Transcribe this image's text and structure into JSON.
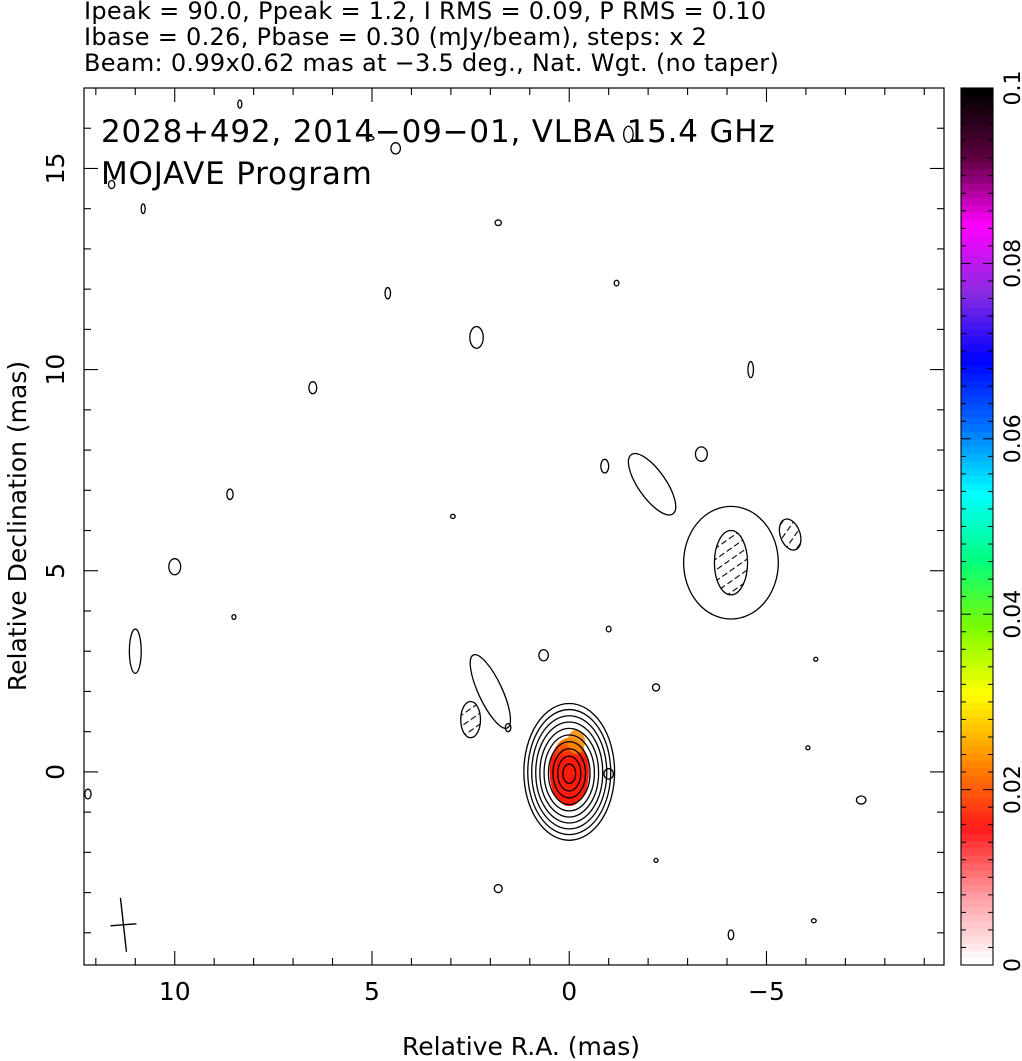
{
  "header": {
    "line1": "Ipeak = 90.0, Ppeak = 1.2, I RMS = 0.09, P RMS = 0.10",
    "line2": "Ibase = 0.26, Pbase = 0.30 (mJy/beam), steps: x 2",
    "line3": "Beam: 0.99x0.62 mas at −3.5 deg., Nat. Wgt. (no taper)"
  },
  "annotations": {
    "source_line": "2028+492, 2014−09−01, VLBA 15.4 GHz",
    "program_line": "MOJAVE Program"
  },
  "axes": {
    "xlabel": "Relative R.A. (mas)",
    "ylabel": "Relative Declination (mas)"
  },
  "colors": {
    "colorbar_stops": [
      "#ffffff",
      "#ff9aa0",
      "#ff1a1a",
      "#ff8c00",
      "#ffff00",
      "#7cfc00",
      "#00ff7f",
      "#00ffff",
      "#0070ff",
      "#0000ff",
      "#8a2be2",
      "#ff00ff",
      "#600040",
      "#000000"
    ],
    "polarization_core": "#ff1a0a",
    "polarization_edge": "#ff8a00"
  },
  "chart_data": {
    "type": "contour",
    "title": "2028+492, 2014−09−01, VLBA 15.4 GHz",
    "subtitle": "MOJAVE Program",
    "xlabel": "Relative R.A. (mas)",
    "ylabel": "Relative Declination (mas)",
    "xlim": [
      12.3,
      -9.5
    ],
    "ylim": [
      -4.8,
      17.0
    ],
    "x_ticks": [
      10,
      5,
      0,
      -5
    ],
    "x_tick_labels": [
      "10",
      "5",
      "0",
      "−5"
    ],
    "y_ticks": [
      0,
      5,
      10,
      15
    ],
    "y_tick_labels": [
      "0",
      "5",
      "10",
      "15"
    ],
    "colorbar": {
      "range": [
        0,
        0.1
      ],
      "ticks": [
        0,
        0.02,
        0.04,
        0.06,
        0.08,
        0.1
      ],
      "tick_labels": [
        "0",
        "0.02",
        "0.04",
        "0.06",
        "0.08",
        "0.1"
      ]
    },
    "stats": {
      "ipeak": 90.0,
      "ppeak": 1.2,
      "i_rms": 0.09,
      "p_rms": 0.1,
      "ibase": 0.26,
      "pbase": 0.3,
      "units": "mJy/beam",
      "contour_step": 2
    },
    "beam": {
      "major_mas": 0.99,
      "minor_mas": 0.62,
      "pa_deg": -3.5,
      "weighting": "Nat. Wgt. (no taper)"
    },
    "core": {
      "x": 0.0,
      "y": 0.0,
      "n_contours": 10,
      "outer_semi_x": 1.15,
      "outer_semi_y": 1.7
    },
    "features": [
      {
        "x": -4.1,
        "y": 5.2,
        "semi_x": 1.2,
        "semi_y": 1.4,
        "hatched": false
      },
      {
        "x": -4.1,
        "y": 5.2,
        "semi_x": 0.42,
        "semi_y": 0.8,
        "hatched": true
      },
      {
        "x": -5.6,
        "y": 5.9,
        "semi_x": 0.25,
        "semi_y": 0.4,
        "hatched": true,
        "angle": -20
      },
      {
        "x": -2.1,
        "y": 7.15,
        "semi_x": 0.35,
        "semi_y": 0.9,
        "angle": -35,
        "hatched": false
      },
      {
        "x": -3.35,
        "y": 7.9,
        "semi_x": 0.15,
        "semi_y": 0.18,
        "hatched": false
      },
      {
        "x": -0.9,
        "y": 7.6,
        "semi_x": 0.1,
        "semi_y": 0.17,
        "hatched": false
      },
      {
        "x": 2.0,
        "y": 2.0,
        "semi_x": 0.3,
        "semi_y": 1.0,
        "angle": -25,
        "hatched": false
      },
      {
        "x": 2.5,
        "y": 1.3,
        "semi_x": 0.25,
        "semi_y": 0.45,
        "hatched": true
      },
      {
        "x": 2.35,
        "y": 10.8,
        "semi_x": 0.17,
        "semi_y": 0.27,
        "hatched": false
      },
      {
        "x": 4.6,
        "y": 11.9,
        "semi_x": 0.07,
        "semi_y": 0.14,
        "hatched": false
      },
      {
        "x": 6.5,
        "y": 9.55,
        "semi_x": 0.1,
        "semi_y": 0.15,
        "hatched": false
      },
      {
        "x": 8.6,
        "y": 6.9,
        "semi_x": 0.08,
        "semi_y": 0.13,
        "hatched": false
      },
      {
        "x": 10.0,
        "y": 5.1,
        "semi_x": 0.15,
        "semi_y": 0.2,
        "hatched": false
      },
      {
        "x": 11.0,
        "y": 3.0,
        "semi_x": 0.15,
        "semi_y": 0.55,
        "hatched": false
      },
      {
        "x": 0.65,
        "y": 2.9,
        "semi_x": 0.12,
        "semi_y": 0.14,
        "hatched": false
      },
      {
        "x": 1.55,
        "y": 1.1,
        "semi_x": 0.07,
        "semi_y": 0.1,
        "hatched": false
      },
      {
        "x": -1.0,
        "y": -0.05,
        "semi_x": 0.12,
        "semi_y": 0.13,
        "hatched": false
      },
      {
        "x": -1.0,
        "y": 3.55,
        "semi_x": 0.06,
        "semi_y": 0.07,
        "hatched": false
      },
      {
        "x": -2.2,
        "y": 2.1,
        "semi_x": 0.09,
        "semi_y": 0.09,
        "hatched": false
      },
      {
        "x": -1.2,
        "y": 12.15,
        "semi_x": 0.06,
        "semi_y": 0.07,
        "hatched": false
      },
      {
        "x": 1.8,
        "y": 13.65,
        "semi_x": 0.08,
        "semi_y": 0.07,
        "hatched": false
      },
      {
        "x": 1.8,
        "y": -2.9,
        "semi_x": 0.1,
        "semi_y": 0.1,
        "hatched": false
      },
      {
        "x": -4.6,
        "y": 10.0,
        "semi_x": 0.07,
        "semi_y": 0.2,
        "hatched": false
      },
      {
        "x": -7.4,
        "y": -0.7,
        "semi_x": 0.12,
        "semi_y": 0.1,
        "hatched": false
      },
      {
        "x": -4.1,
        "y": -4.05,
        "semi_x": 0.07,
        "semi_y": 0.12,
        "hatched": false
      },
      {
        "x": -6.2,
        "y": -3.7,
        "semi_x": 0.06,
        "semi_y": 0.05,
        "hatched": false
      },
      {
        "x": -6.25,
        "y": 2.8,
        "semi_x": 0.05,
        "semi_y": 0.05,
        "hatched": false
      },
      {
        "x": -2.2,
        "y": -2.2,
        "semi_x": 0.04,
        "semi_y": 0.04,
        "hatched": false
      },
      {
        "x": -6.05,
        "y": 0.6,
        "semi_x": 0.04,
        "semi_y": 0.04,
        "hatched": false
      },
      {
        "x": 2.95,
        "y": 6.35,
        "semi_x": 0.06,
        "semi_y": 0.04,
        "hatched": false
      },
      {
        "x": 8.5,
        "y": 3.85,
        "semi_x": 0.03,
        "semi_y": 0.06,
        "hatched": false
      },
      {
        "x": 10.8,
        "y": 14.0,
        "semi_x": 0.05,
        "semi_y": 0.12,
        "hatched": false
      },
      {
        "x": 5.05,
        "y": 15.75,
        "semi_x": 0.1,
        "semi_y": 0.05,
        "hatched": false
      },
      {
        "x": 4.4,
        "y": 15.5,
        "semi_x": 0.12,
        "semi_y": 0.14,
        "hatched": false
      },
      {
        "x": -1.5,
        "y": 15.85,
        "semi_x": 0.12,
        "semi_y": 0.2,
        "hatched": false
      },
      {
        "x": 11.6,
        "y": 14.6,
        "semi_x": 0.08,
        "semi_y": 0.1,
        "hatched": false
      },
      {
        "x": 8.35,
        "y": 16.6,
        "semi_x": 0.03,
        "semi_y": 0.1,
        "hatched": false
      },
      {
        "x": 12.2,
        "y": -0.55,
        "semi_x": 0.08,
        "semi_y": 0.12,
        "hatched": false
      }
    ],
    "polarization_blob": {
      "x": 0.0,
      "y": 0.0,
      "semi_x": 0.5,
      "semi_y": 0.85,
      "extent_y_max": 1.05
    },
    "beam_marker": {
      "x": 11.3,
      "y": -3.8
    }
  }
}
